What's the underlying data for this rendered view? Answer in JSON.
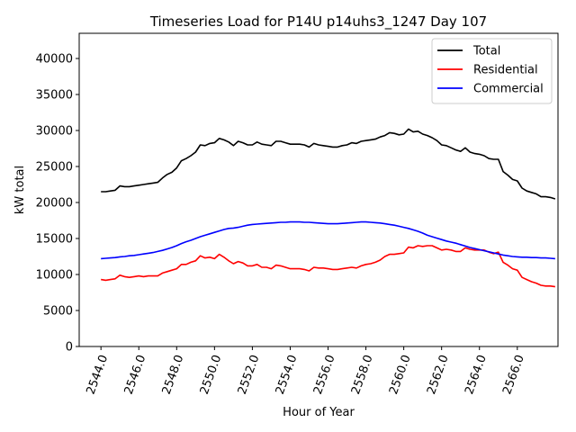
{
  "chart_data": {
    "type": "line",
    "title": "Timeseries Load for P14U p14uhs3_1247  Day 107",
    "xlabel": "Hour of Year",
    "ylabel": "kW total",
    "xlim": [
      2542.85,
      2568.15
    ],
    "ylim": [
      0,
      43500
    ],
    "x_ticks": [
      2544,
      2546,
      2548,
      2550,
      2552,
      2554,
      2556,
      2558,
      2560,
      2562,
      2564,
      2566
    ],
    "x_tick_labels": [
      "2544.0",
      "2546.0",
      "2548.0",
      "2550.0",
      "2552.0",
      "2554.0",
      "2556.0",
      "2558.0",
      "2560.0",
      "2562.0",
      "2564.0",
      "2566.0"
    ],
    "y_ticks": [
      0,
      5000,
      10000,
      15000,
      20000,
      25000,
      30000,
      35000,
      40000
    ],
    "y_tick_labels": [
      "0",
      "5000",
      "10000",
      "15000",
      "20000",
      "25000",
      "30000",
      "35000",
      "40000"
    ],
    "legend_position": "top-right",
    "x_start": 2544,
    "x_step": 0.25,
    "series": [
      {
        "name": "Total",
        "color": "#000000",
        "values": [
          21500,
          21500,
          21600,
          21700,
          22300,
          22200,
          22200,
          22300,
          22400,
          22500,
          22600,
          22700,
          22800,
          23400,
          23900,
          24200,
          24800,
          25800,
          26100,
          26500,
          27000,
          28000,
          27900,
          28200,
          28300,
          28900,
          28700,
          28400,
          27900,
          28500,
          28300,
          28000,
          28000,
          28400,
          28100,
          28000,
          27900,
          28500,
          28500,
          28300,
          28100,
          28100,
          28100,
          28000,
          27700,
          28200,
          28000,
          27900,
          27800,
          27700,
          27700,
          27900,
          28000,
          28300,
          28200,
          28500,
          28600,
          28700,
          28800,
          29100,
          29300,
          29700,
          29600,
          29400,
          29500,
          30200,
          29800,
          29900,
          29500,
          29300,
          29000,
          28600,
          28000,
          27900,
          27600,
          27300,
          27100,
          27600,
          27000,
          26800,
          26700,
          26500,
          26100,
          26000,
          26000,
          24300,
          23800,
          23200,
          23000,
          22000,
          21600,
          21400,
          21200,
          20800,
          20800,
          20700,
          20500
        ]
      },
      {
        "name": "Residential",
        "color": "#ff0000",
        "values": [
          9300,
          9200,
          9300,
          9400,
          9900,
          9700,
          9600,
          9700,
          9800,
          9700,
          9800,
          9800,
          9800,
          10200,
          10400,
          10600,
          10800,
          11400,
          11400,
          11700,
          11900,
          12600,
          12300,
          12400,
          12200,
          12800,
          12400,
          11900,
          11500,
          11800,
          11600,
          11200,
          11200,
          11400,
          11000,
          11000,
          10800,
          11300,
          11200,
          11000,
          10800,
          10800,
          10800,
          10700,
          10500,
          11000,
          10900,
          10900,
          10800,
          10700,
          10700,
          10800,
          10900,
          11000,
          10900,
          11200,
          11400,
          11500,
          11700,
          12000,
          12500,
          12800,
          12800,
          12900,
          13000,
          13800,
          13700,
          14000,
          13900,
          14000,
          14000,
          13700,
          13400,
          13500,
          13400,
          13200,
          13200,
          13700,
          13500,
          13400,
          13400,
          13400,
          13100,
          12900,
          13100,
          11700,
          11300,
          10800,
          10600,
          9600,
          9300,
          9000,
          8800,
          8500,
          8400,
          8400,
          8300
        ]
      },
      {
        "name": "Commercial",
        "color": "#0000ff",
        "values": [
          12200,
          12250,
          12300,
          12350,
          12450,
          12500,
          12600,
          12650,
          12750,
          12850,
          12950,
          13050,
          13200,
          13350,
          13550,
          13750,
          14000,
          14300,
          14550,
          14750,
          15000,
          15250,
          15450,
          15650,
          15850,
          16050,
          16250,
          16400,
          16450,
          16550,
          16700,
          16850,
          16950,
          17000,
          17050,
          17100,
          17150,
          17200,
          17250,
          17250,
          17300,
          17300,
          17300,
          17250,
          17250,
          17200,
          17150,
          17100,
          17050,
          17050,
          17050,
          17100,
          17150,
          17200,
          17250,
          17300,
          17300,
          17250,
          17200,
          17150,
          17050,
          16950,
          16850,
          16700,
          16550,
          16400,
          16200,
          16000,
          15750,
          15450,
          15250,
          15050,
          14850,
          14650,
          14500,
          14350,
          14150,
          13950,
          13750,
          13600,
          13450,
          13300,
          13150,
          13000,
          12850,
          12700,
          12600,
          12500,
          12450,
          12400,
          12400,
          12350,
          12350,
          12300,
          12300,
          12250,
          12200
        ]
      }
    ]
  }
}
